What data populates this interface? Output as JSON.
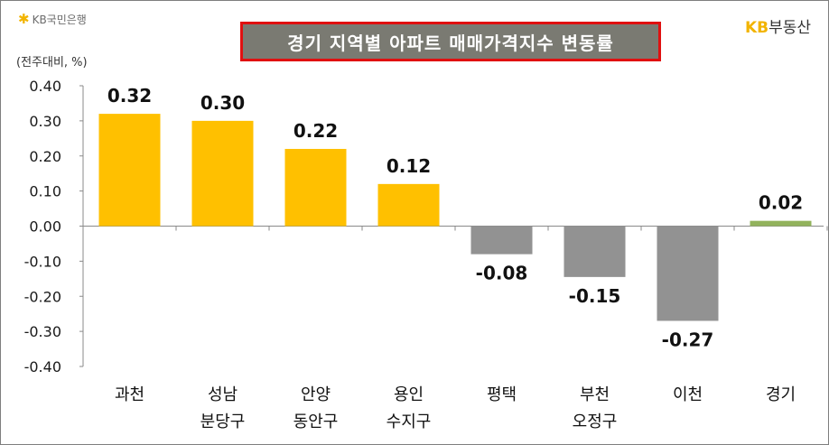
{
  "header": {
    "bank_logo_text": "KB국민은행",
    "brand_right_kb": "KB",
    "brand_right_name": "부동산",
    "title": "경기 지역별 아파트 매매가격지수 변동률"
  },
  "colors": {
    "positive_bar": "#FFC000",
    "negative_bar": "#929292",
    "aggregate_bar": "#92B35C",
    "title_bg": "#7A7A72",
    "title_border": "#E01010",
    "logo_accent": "#F2B400"
  },
  "chart_data": {
    "type": "bar",
    "unit_label": "(전주대비, %)",
    "categories": [
      [
        "과천"
      ],
      [
        "성남",
        "분당구"
      ],
      [
        "안양",
        "동안구"
      ],
      [
        "용인",
        "수지구"
      ],
      [
        "평택"
      ],
      [
        "부천",
        "오정구"
      ],
      [
        "이천"
      ],
      [
        "경기"
      ]
    ],
    "values": [
      0.32,
      0.3,
      0.22,
      0.12,
      -0.08,
      -0.15,
      -0.27,
      0.02
    ],
    "data_labels": [
      "0.32",
      "0.30",
      "0.22",
      "0.12",
      "-0.08",
      "-0.15",
      "-0.27",
      "0.02"
    ],
    "bar_value_heights": [
      0.32,
      0.3,
      0.22,
      0.12,
      -0.08,
      -0.145,
      -0.27,
      0.015
    ],
    "yticks": [
      "0.40",
      "0.30",
      "0.20",
      "0.10",
      "0.00",
      "-0.10",
      "-0.20",
      "-0.30",
      "-0.40"
    ],
    "ylim": [
      -0.4,
      0.4
    ],
    "grid": false
  }
}
